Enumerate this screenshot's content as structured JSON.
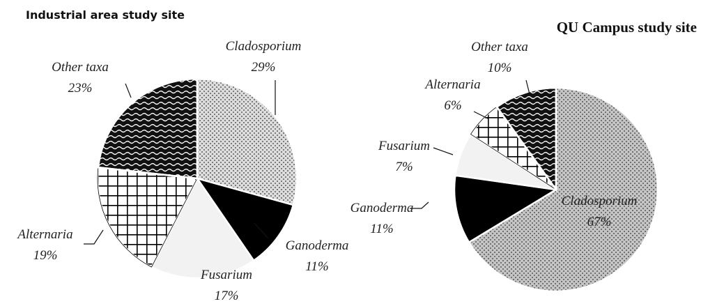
{
  "chart_data": [
    {
      "type": "pie",
      "title": "Industrial area study site",
      "categories": [
        "Cladosporium",
        "Ganoderma",
        "Fusarium",
        "Alternaria",
        "Other taxa"
      ],
      "values": [
        29,
        11,
        17,
        19,
        23
      ],
      "value_labels": [
        "29%",
        "11%",
        "17%",
        "19%",
        "23%"
      ],
      "colors": [
        "#dcdcdc",
        "#000000",
        "#f2f2f2",
        "#ffffff",
        "#111111"
      ]
    },
    {
      "type": "pie",
      "title": "QU Campus study site",
      "categories": [
        "Cladosporium",
        "Ganoderma",
        "Fusarium",
        "Alternaria",
        "Other taxa"
      ],
      "values": [
        67,
        11,
        7,
        6,
        10
      ],
      "value_labels": [
        "67%",
        "11%",
        "7%",
        "6%",
        "10%"
      ],
      "colors": [
        "#c4c4c4",
        "#000000",
        "#f2f2f2",
        "#ffffff",
        "#111111"
      ]
    }
  ]
}
